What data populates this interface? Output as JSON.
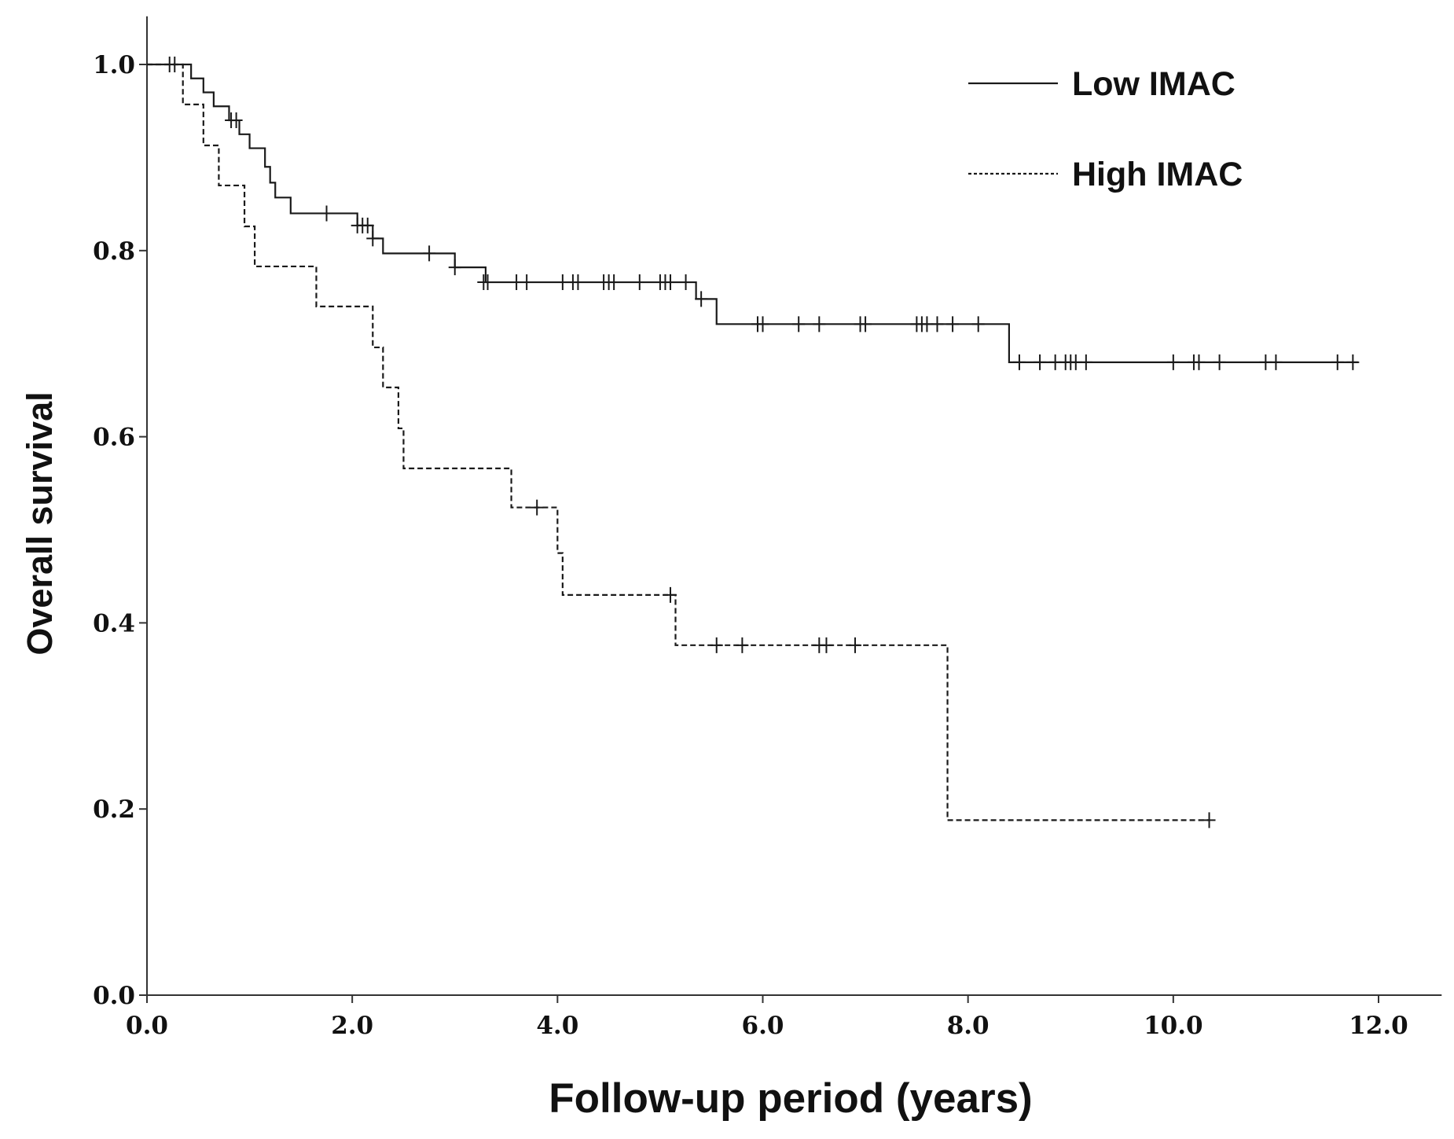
{
  "chart_data": {
    "type": "line",
    "subtype": "kaplan-meier",
    "title": "",
    "xlabel": "Follow-up period (years)",
    "ylabel": "Overall survival",
    "xlim": [
      0,
      12.5
    ],
    "ylim": [
      0,
      1.05
    ],
    "xticks": [
      0,
      2,
      4,
      6,
      8,
      10,
      12
    ],
    "xtick_labels": [
      "0.0",
      "2.0",
      "4.0",
      "6.0",
      "8.0",
      "10.0",
      "12.0"
    ],
    "yticks": [
      0,
      0.2,
      0.4,
      0.6,
      0.8,
      1.0
    ],
    "ytick_labels": [
      "0.0",
      "0.2",
      "0.4",
      "0.6",
      "0.8",
      "1.0"
    ],
    "grid": false,
    "legend_position": "top-right",
    "series": [
      {
        "name": "Low IMAC",
        "style": "solid",
        "steps": [
          [
            0,
            1.0
          ],
          [
            0.43,
            0.985
          ],
          [
            0.55,
            0.97
          ],
          [
            0.65,
            0.955
          ],
          [
            0.8,
            0.94
          ],
          [
            0.9,
            0.925
          ],
          [
            1.0,
            0.91
          ],
          [
            1.15,
            0.89
          ],
          [
            1.2,
            0.873
          ],
          [
            1.25,
            0.857
          ],
          [
            1.4,
            0.84
          ],
          [
            2.05,
            0.827
          ],
          [
            2.2,
            0.813
          ],
          [
            2.3,
            0.797
          ],
          [
            3.0,
            0.782
          ],
          [
            3.3,
            0.766
          ],
          [
            5.35,
            0.748
          ],
          [
            5.55,
            0.721
          ],
          [
            8.4,
            0.68
          ],
          [
            11.8,
            0.68
          ]
        ],
        "censored": [
          [
            0.22,
            1.0
          ],
          [
            0.27,
            1.0
          ],
          [
            0.82,
            0.94
          ],
          [
            0.87,
            0.94
          ],
          [
            1.75,
            0.84
          ],
          [
            2.05,
            0.827
          ],
          [
            2.1,
            0.827
          ],
          [
            2.15,
            0.827
          ],
          [
            2.2,
            0.813
          ],
          [
            2.75,
            0.797
          ],
          [
            3.0,
            0.782
          ],
          [
            3.28,
            0.766
          ],
          [
            3.32,
            0.766
          ],
          [
            3.6,
            0.766
          ],
          [
            3.7,
            0.766
          ],
          [
            4.05,
            0.766
          ],
          [
            4.15,
            0.766
          ],
          [
            4.2,
            0.766
          ],
          [
            4.45,
            0.766
          ],
          [
            4.5,
            0.766
          ],
          [
            4.55,
            0.766
          ],
          [
            4.8,
            0.766
          ],
          [
            5.0,
            0.766
          ],
          [
            5.05,
            0.766
          ],
          [
            5.1,
            0.766
          ],
          [
            5.25,
            0.766
          ],
          [
            5.4,
            0.748
          ],
          [
            5.95,
            0.721
          ],
          [
            6.0,
            0.721
          ],
          [
            6.35,
            0.721
          ],
          [
            6.55,
            0.721
          ],
          [
            6.95,
            0.721
          ],
          [
            7.0,
            0.721
          ],
          [
            7.5,
            0.721
          ],
          [
            7.55,
            0.721
          ],
          [
            7.6,
            0.721
          ],
          [
            7.7,
            0.721
          ],
          [
            7.85,
            0.721
          ],
          [
            8.1,
            0.721
          ],
          [
            8.5,
            0.68
          ],
          [
            8.7,
            0.68
          ],
          [
            8.85,
            0.68
          ],
          [
            8.95,
            0.68
          ],
          [
            9.0,
            0.68
          ],
          [
            9.05,
            0.68
          ],
          [
            9.15,
            0.68
          ],
          [
            10.0,
            0.68
          ],
          [
            10.2,
            0.68
          ],
          [
            10.25,
            0.68
          ],
          [
            10.45,
            0.68
          ],
          [
            10.9,
            0.68
          ],
          [
            11.0,
            0.68
          ],
          [
            11.6,
            0.68
          ],
          [
            11.75,
            0.68
          ]
        ]
      },
      {
        "name": "High IMAC",
        "style": "dashed",
        "steps": [
          [
            0,
            1.0
          ],
          [
            0.35,
            0.957
          ],
          [
            0.55,
            0.913
          ],
          [
            0.7,
            0.87
          ],
          [
            0.95,
            0.826
          ],
          [
            1.05,
            0.783
          ],
          [
            1.65,
            0.74
          ],
          [
            2.2,
            0.696
          ],
          [
            2.3,
            0.653
          ],
          [
            2.45,
            0.609
          ],
          [
            2.5,
            0.566
          ],
          [
            3.55,
            0.524
          ],
          [
            4.0,
            0.475
          ],
          [
            4.05,
            0.43
          ],
          [
            5.15,
            0.376
          ],
          [
            7.8,
            0.188
          ],
          [
            10.35,
            0.188
          ]
        ],
        "censored": [
          [
            3.8,
            0.524
          ],
          [
            5.1,
            0.43
          ],
          [
            5.55,
            0.376
          ],
          [
            5.8,
            0.376
          ],
          [
            6.55,
            0.376
          ],
          [
            6.62,
            0.376
          ],
          [
            6.9,
            0.376
          ],
          [
            10.35,
            0.188
          ]
        ]
      }
    ]
  }
}
